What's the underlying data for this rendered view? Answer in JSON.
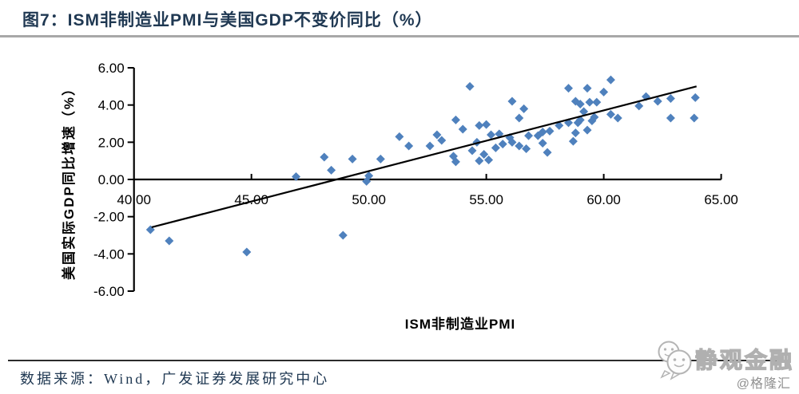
{
  "title": "图7：ISM非制造业PMI与美国GDP不变价同比（%）",
  "source": "数据来源：Wind，广发证券发展研究中心",
  "watermark": {
    "name": "静观金融",
    "handle": "@格隆汇"
  },
  "colors": {
    "title_text": "#1F3852",
    "title_rule": "#A8A8A8",
    "source_rule": "#2B2B2B",
    "watermark_outline": "#B0B0B0",
    "handle_gray": "#8F8F8F"
  },
  "chart_data": {
    "type": "scatter",
    "title": "图7：ISM非制造业PMI与美国GDP不变价同比（%）",
    "xlabel": "ISM非制造业PMI",
    "ylabel": "美国实际GDP同比增速（%）",
    "xlim": [
      40,
      65
    ],
    "ylim": [
      -6,
      6
    ],
    "x_tick_step": 5,
    "y_tick_step": 2,
    "x_ticks": [
      "40.00",
      "45.00",
      "50.00",
      "55.00",
      "60.00",
      "65.00"
    ],
    "y_ticks": [
      "6.00",
      "4.00",
      "2.00",
      "0.00",
      "-2.00",
      "-4.00",
      "-6.00"
    ],
    "grid": false,
    "legend": "none",
    "marker_color": "#4F81BD",
    "axis_color": "#000000",
    "trend_color": "#000000",
    "trendline": {
      "x1": 40.75,
      "y1": -2.57,
      "x2": 63.95,
      "y2": 5.0
    },
    "points": [
      [
        40.7,
        -2.7
      ],
      [
        41.5,
        -3.3
      ],
      [
        44.8,
        -3.9
      ],
      [
        46.9,
        0.15
      ],
      [
        48.1,
        1.2
      ],
      [
        48.4,
        0.5
      ],
      [
        48.9,
        -3.0
      ],
      [
        49.3,
        1.1
      ],
      [
        49.9,
        -0.1
      ],
      [
        50.0,
        0.2
      ],
      [
        50.5,
        1.1
      ],
      [
        51.3,
        2.3
      ],
      [
        51.7,
        1.8
      ],
      [
        52.6,
        1.8
      ],
      [
        52.9,
        2.4
      ],
      [
        53.1,
        2.1
      ],
      [
        53.6,
        1.25
      ],
      [
        53.7,
        3.2
      ],
      [
        53.7,
        0.95
      ],
      [
        54.0,
        2.7
      ],
      [
        54.3,
        5.0
      ],
      [
        54.4,
        1.55
      ],
      [
        54.6,
        2.0
      ],
      [
        54.7,
        2.9
      ],
      [
        54.7,
        1.0
      ],
      [
        54.9,
        1.35
      ],
      [
        55.0,
        2.95
      ],
      [
        55.1,
        1.05
      ],
      [
        55.2,
        2.4
      ],
      [
        55.4,
        1.7
      ],
      [
        55.55,
        2.45
      ],
      [
        55.7,
        1.9
      ],
      [
        56.0,
        2.25
      ],
      [
        56.1,
        4.2
      ],
      [
        56.1,
        2.0
      ],
      [
        56.4,
        3.3
      ],
      [
        56.4,
        1.8
      ],
      [
        56.6,
        3.8
      ],
      [
        56.7,
        1.65
      ],
      [
        56.8,
        2.35
      ],
      [
        57.2,
        2.35
      ],
      [
        57.4,
        2.55
      ],
      [
        57.4,
        1.95
      ],
      [
        57.6,
        1.45
      ],
      [
        57.7,
        2.6
      ],
      [
        58.1,
        2.9
      ],
      [
        58.5,
        3.05
      ],
      [
        58.5,
        4.9
      ],
      [
        58.7,
        2.05
      ],
      [
        58.8,
        2.5
      ],
      [
        58.8,
        4.2
      ],
      [
        58.9,
        3.05
      ],
      [
        59.0,
        3.2
      ],
      [
        59.0,
        4.05
      ],
      [
        59.15,
        3.65
      ],
      [
        59.3,
        4.9
      ],
      [
        59.3,
        2.65
      ],
      [
        59.4,
        4.15
      ],
      [
        59.5,
        3.15
      ],
      [
        59.6,
        3.35
      ],
      [
        59.7,
        4.15
      ],
      [
        60.0,
        4.7
      ],
      [
        60.3,
        5.35
      ],
      [
        60.3,
        3.5
      ],
      [
        60.6,
        3.3
      ],
      [
        61.5,
        3.95
      ],
      [
        61.8,
        4.45
      ],
      [
        62.3,
        4.2
      ],
      [
        62.85,
        4.35
      ],
      [
        62.85,
        3.3
      ],
      [
        63.85,
        3.3
      ],
      [
        63.9,
        4.4
      ]
    ]
  }
}
